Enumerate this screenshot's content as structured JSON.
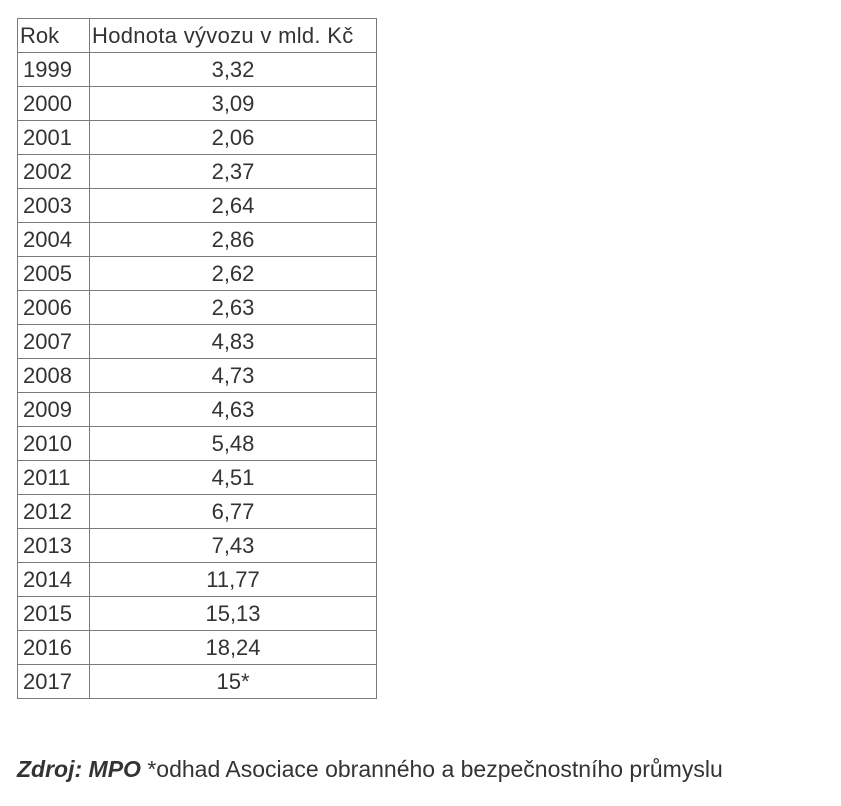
{
  "table": {
    "header": [
      "Rok",
      "Hodnota vývozu v mld. Kč"
    ],
    "rows": [
      [
        "1999",
        "3,32"
      ],
      [
        "2000",
        "3,09"
      ],
      [
        "2001",
        "2,06"
      ],
      [
        "2002",
        "2,37"
      ],
      [
        "2003",
        "2,64"
      ],
      [
        "2004",
        "2,86"
      ],
      [
        "2005",
        "2,62"
      ],
      [
        "2006",
        "2,63"
      ],
      [
        "2007",
        "4,83"
      ],
      [
        "2008",
        "4,73"
      ],
      [
        "2009",
        "4,63"
      ],
      [
        "2010",
        "5,48"
      ],
      [
        "2011",
        "4,51"
      ],
      [
        "2012",
        "6,77"
      ],
      [
        "2013",
        "7,43"
      ],
      [
        "2014",
        "11,77"
      ],
      [
        "2015",
        "15,13"
      ],
      [
        "2016",
        "18,24"
      ],
      [
        "2017",
        "15*"
      ]
    ]
  },
  "source": {
    "label": "Zdroj: MPO",
    "note": "*odhad Asociace obranného a bezpečnostního průmyslu"
  }
}
